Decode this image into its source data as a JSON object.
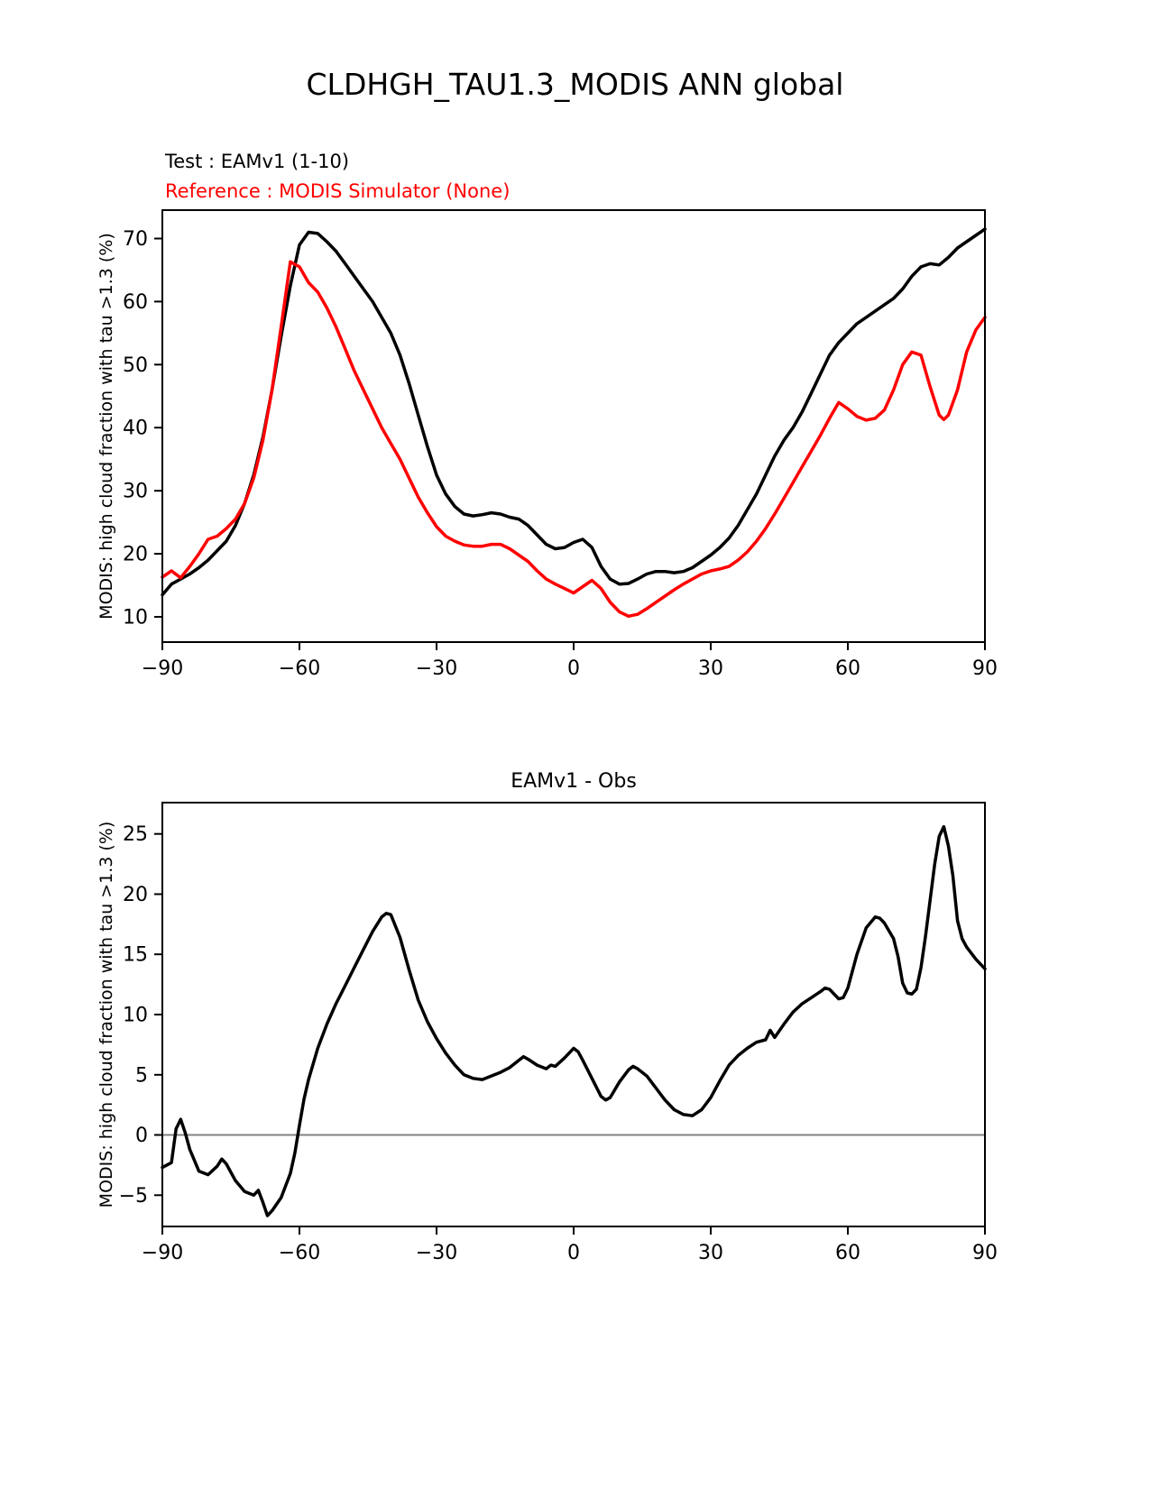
{
  "page": {
    "title": "CLDHGH_TAU1.3_MODIS ANN global"
  },
  "legend": {
    "test": "Test : EAMv1 (1-10)",
    "reference": "Reference : MODIS Simulator (None)"
  },
  "colors": {
    "test": "#000000",
    "reference": "#ff0000",
    "zero_line": "#808080",
    "frame": "#000000"
  },
  "chart_data": [
    {
      "type": "line",
      "title": "CLDHGH_TAU1.3_MODIS ANN global",
      "xlabel": "",
      "ylabel": "MODIS: high cloud fraction with tau >1.3 (%)",
      "xlim": [
        -90,
        90
      ],
      "ylim": [
        6,
        74.5
      ],
      "xticks": [
        -90,
        -60,
        -30,
        0,
        30,
        60,
        90
      ],
      "yticks": [
        10,
        20,
        30,
        40,
        50,
        60,
        70
      ],
      "grid": false,
      "legend_position": "above-left",
      "series": [
        {
          "name": "Test : EAMv1 (1-10)",
          "color": "#000000",
          "x": [
            -90,
            -88,
            -86,
            -84,
            -82,
            -80,
            -78,
            -76,
            -74,
            -72,
            -70,
            -68,
            -66,
            -64,
            -62,
            -60,
            -58,
            -56,
            -54,
            -52,
            -50,
            -48,
            -46,
            -44,
            -42,
            -40,
            -38,
            -36,
            -34,
            -32,
            -30,
            -28,
            -26,
            -24,
            -22,
            -20,
            -18,
            -16,
            -14,
            -12,
            -10,
            -8,
            -6,
            -4,
            -2,
            0,
            2,
            4,
            6,
            8,
            10,
            12,
            14,
            16,
            18,
            20,
            22,
            24,
            26,
            28,
            30,
            32,
            34,
            36,
            38,
            40,
            42,
            44,
            46,
            48,
            50,
            52,
            54,
            56,
            58,
            60,
            62,
            64,
            66,
            68,
            70,
            72,
            74,
            76,
            78,
            80,
            82,
            84,
            86,
            88,
            90
          ],
          "y": [
            13.5,
            15.2,
            16.0,
            16.8,
            17.8,
            19.0,
            20.5,
            22.0,
            24.5,
            28.0,
            32.5,
            38.5,
            46.0,
            54.5,
            62.5,
            69.0,
            71.0,
            70.8,
            69.5,
            68.0,
            66.0,
            64.0,
            62.0,
            60.0,
            57.5,
            55.0,
            51.5,
            47.0,
            42.0,
            37.0,
            32.5,
            29.5,
            27.5,
            26.3,
            26.0,
            26.2,
            26.5,
            26.3,
            25.8,
            25.5,
            24.5,
            23.0,
            21.5,
            20.8,
            21.0,
            21.8,
            22.3,
            21.0,
            18.0,
            16.0,
            15.2,
            15.3,
            16.0,
            16.8,
            17.2,
            17.2,
            17.0,
            17.2,
            17.8,
            18.8,
            19.8,
            21.0,
            22.5,
            24.5,
            27.0,
            29.5,
            32.5,
            35.5,
            38.0,
            40.0,
            42.5,
            45.5,
            48.5,
            51.5,
            53.5,
            55.0,
            56.5,
            57.5,
            58.5,
            59.5,
            60.5,
            62.0,
            64.0,
            65.5,
            66.0,
            65.8,
            67.0,
            68.5,
            69.5,
            70.5,
            71.5
          ]
        },
        {
          "name": "Reference : MODIS Simulator (None)",
          "color": "#ff0000",
          "x": [
            -90,
            -88,
            -86,
            -84,
            -82,
            -80,
            -78,
            -76,
            -74,
            -72,
            -70,
            -68,
            -66,
            -64,
            -62,
            -60,
            -58,
            -56,
            -54,
            -52,
            -50,
            -48,
            -46,
            -44,
            -42,
            -40,
            -38,
            -36,
            -34,
            -32,
            -30,
            -28,
            -26,
            -24,
            -22,
            -20,
            -18,
            -16,
            -14,
            -12,
            -10,
            -8,
            -6,
            -4,
            -2,
            0,
            2,
            4,
            6,
            8,
            10,
            12,
            14,
            16,
            18,
            20,
            22,
            24,
            26,
            28,
            30,
            32,
            34,
            36,
            38,
            40,
            42,
            44,
            46,
            48,
            50,
            52,
            54,
            56,
            58,
            60,
            62,
            64,
            66,
            68,
            70,
            72,
            74,
            76,
            78,
            80,
            81,
            82,
            84,
            86,
            88,
            90
          ],
          "y": [
            16.3,
            17.3,
            16.2,
            18.0,
            20.0,
            22.3,
            22.8,
            24.0,
            25.5,
            28.0,
            32.0,
            38.0,
            46.0,
            56.0,
            66.3,
            65.5,
            63.0,
            61.5,
            59.0,
            56.0,
            52.5,
            49.0,
            46.0,
            43.0,
            40.0,
            37.5,
            35.0,
            32.0,
            29.0,
            26.5,
            24.3,
            22.8,
            22.0,
            21.4,
            21.2,
            21.2,
            21.5,
            21.5,
            20.8,
            19.8,
            18.8,
            17.3,
            16.0,
            15.2,
            14.5,
            13.8,
            14.8,
            15.8,
            14.5,
            12.3,
            10.8,
            10.1,
            10.4,
            11.3,
            12.3,
            13.3,
            14.3,
            15.2,
            16.0,
            16.8,
            17.3,
            17.6,
            18.0,
            19.0,
            20.3,
            22.0,
            24.0,
            26.3,
            28.8,
            31.3,
            33.8,
            36.3,
            38.8,
            41.5,
            44.0,
            43.0,
            41.8,
            41.2,
            41.5,
            42.8,
            46.0,
            50.0,
            52.0,
            51.5,
            46.5,
            42.0,
            41.3,
            42.0,
            46.0,
            52.0,
            55.5,
            57.5
          ]
        }
      ]
    },
    {
      "type": "line",
      "title": "EAMv1 - Obs",
      "xlabel": "",
      "ylabel": "MODIS: high cloud fraction with tau >1.3 (%)",
      "xlim": [
        -90,
        90
      ],
      "ylim": [
        -7.6,
        27.6
      ],
      "xticks": [
        -90,
        -60,
        -30,
        0,
        30,
        60,
        90
      ],
      "yticks": [
        -5,
        0,
        5,
        10,
        15,
        20,
        25
      ],
      "grid": false,
      "zero_line": true,
      "series": [
        {
          "name": "EAMv1 - Obs",
          "color": "#000000",
          "x": [
            -90,
            -88,
            -87,
            -86,
            -85,
            -84,
            -82,
            -80,
            -78,
            -77,
            -76,
            -74,
            -72,
            -70,
            -69,
            -68,
            -67,
            -66,
            -64,
            -62,
            -61,
            -60,
            -59,
            -58,
            -56,
            -54,
            -52,
            -50,
            -48,
            -46,
            -44,
            -42,
            -41,
            -40,
            -38,
            -36,
            -34,
            -32,
            -30,
            -28,
            -26,
            -24,
            -22,
            -20,
            -18,
            -16,
            -14,
            -12,
            -11,
            -10,
            -8,
            -6,
            -5,
            -4,
            -2,
            0,
            1,
            2,
            4,
            6,
            7,
            8,
            10,
            12,
            13,
            14,
            16,
            18,
            20,
            22,
            24,
            26,
            28,
            30,
            32,
            34,
            36,
            38,
            40,
            42,
            43,
            44,
            46,
            48,
            50,
            52,
            54,
            55,
            56,
            58,
            59,
            60,
            62,
            64,
            66,
            67,
            68,
            70,
            71,
            72,
            73,
            74,
            75,
            76,
            77,
            78,
            79,
            80,
            81,
            82,
            83,
            84,
            85,
            86,
            88,
            90
          ],
          "y": [
            -2.7,
            -2.3,
            0.5,
            1.3,
            0.2,
            -1.2,
            -3.0,
            -3.3,
            -2.6,
            -2.0,
            -2.4,
            -3.8,
            -4.7,
            -5.0,
            -4.6,
            -5.6,
            -6.7,
            -6.3,
            -5.2,
            -3.2,
            -1.5,
            0.8,
            3.0,
            4.6,
            7.2,
            9.2,
            10.9,
            12.4,
            13.9,
            15.4,
            16.9,
            18.1,
            18.4,
            18.3,
            16.4,
            13.7,
            11.2,
            9.4,
            8.0,
            6.8,
            5.8,
            5.0,
            4.7,
            4.6,
            4.9,
            5.2,
            5.6,
            6.2,
            6.5,
            6.3,
            5.8,
            5.5,
            5.8,
            5.7,
            6.4,
            7.2,
            6.9,
            6.2,
            4.7,
            3.2,
            2.9,
            3.1,
            4.4,
            5.4,
            5.7,
            5.5,
            4.9,
            3.9,
            2.9,
            2.1,
            1.7,
            1.6,
            2.1,
            3.1,
            4.5,
            5.8,
            6.6,
            7.2,
            7.7,
            7.9,
            8.7,
            8.1,
            9.2,
            10.2,
            10.9,
            11.4,
            11.9,
            12.2,
            12.1,
            11.3,
            11.4,
            12.2,
            15.0,
            17.2,
            18.1,
            18.0,
            17.6,
            16.3,
            14.8,
            12.6,
            11.8,
            11.7,
            12.1,
            13.9,
            16.5,
            19.5,
            22.5,
            24.8,
            25.6,
            24.0,
            21.5,
            17.8,
            16.3,
            15.6,
            14.6,
            13.8
          ]
        }
      ]
    }
  ]
}
